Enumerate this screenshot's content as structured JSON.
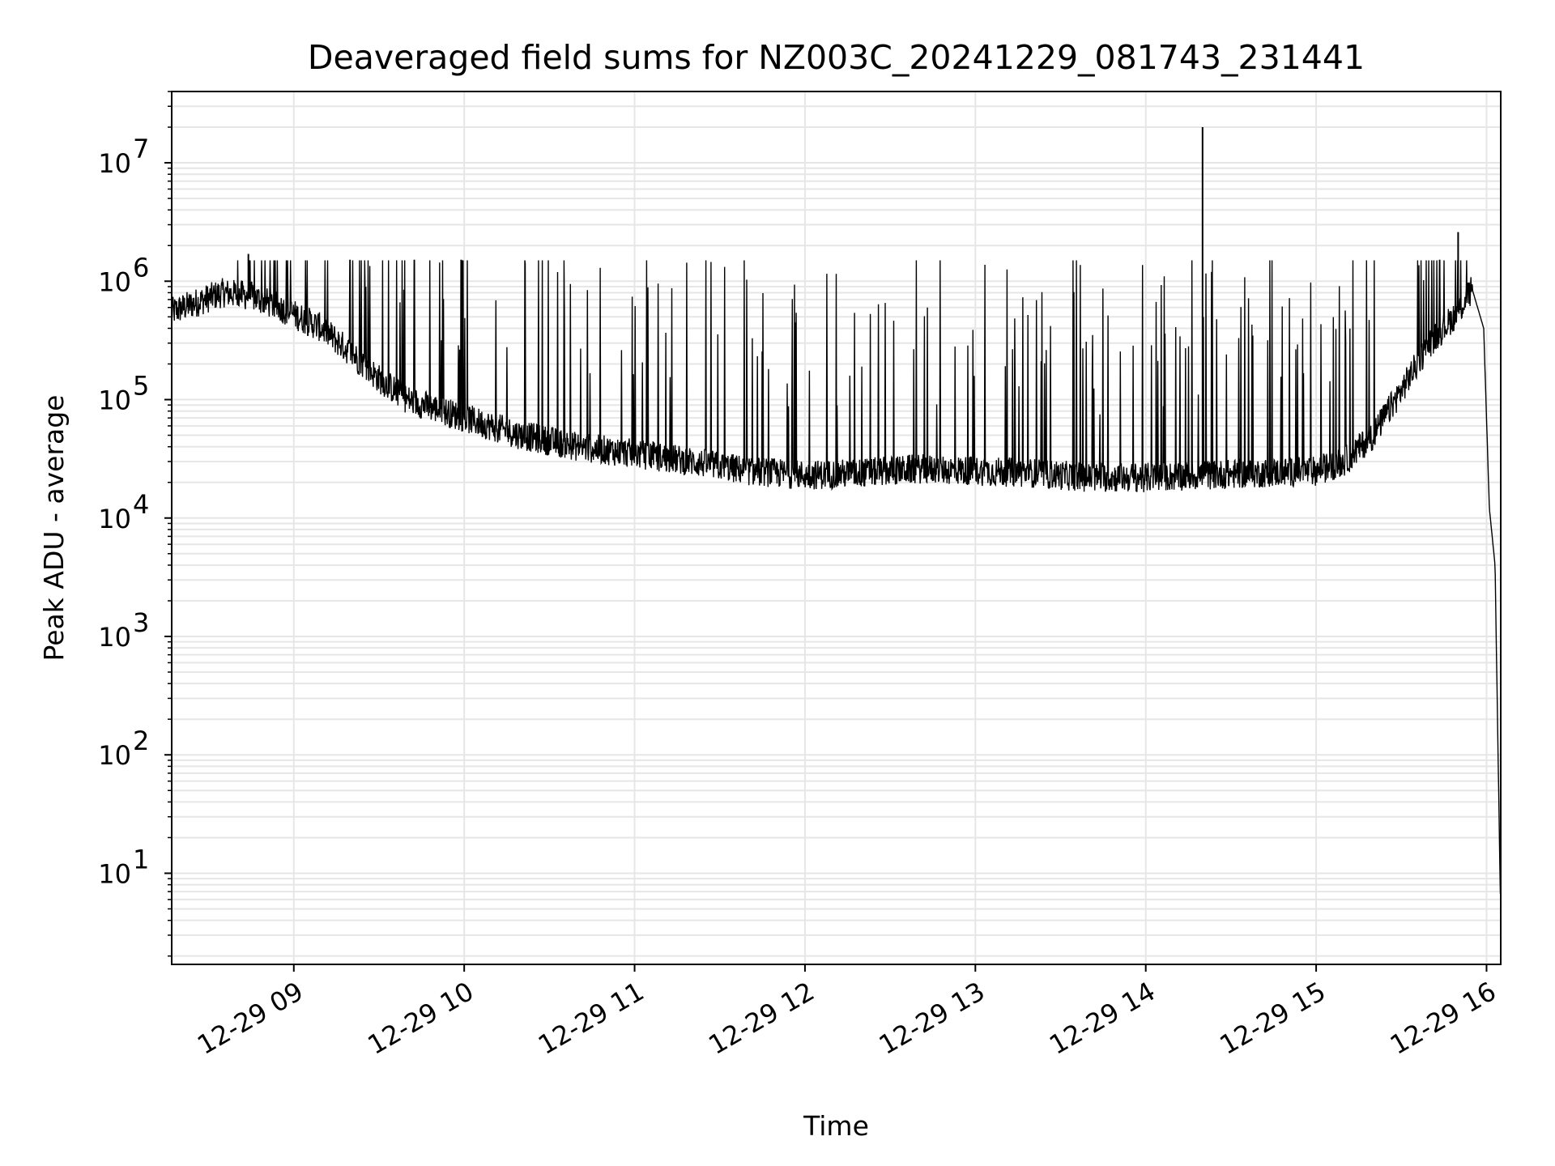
{
  "chart_data": {
    "type": "line",
    "title": "Deaveraged field sums for NZ003C_20241229_081743_231441",
    "xlabel": "Time",
    "ylabel": "Peak ADU - average",
    "yscale": "log",
    "xlim": [
      "12-29 08:17",
      "12-29 16:05"
    ],
    "ylim": [
      1.7,
      40000000
    ],
    "grid": true,
    "x_ticks": [
      "12-29 09",
      "12-29 10",
      "12-29 11",
      "12-29 12",
      "12-29 13",
      "12-29 14",
      "12-29 15",
      "12-29 16"
    ],
    "y_ticks": [
      {
        "base": "10",
        "exp": "1",
        "value": 10
      },
      {
        "base": "10",
        "exp": "2",
        "value": 100
      },
      {
        "base": "10",
        "exp": "3",
        "value": 1000
      },
      {
        "base": "10",
        "exp": "4",
        "value": 10000
      },
      {
        "base": "10",
        "exp": "5",
        "value": 100000
      },
      {
        "base": "10",
        "exp": "6",
        "value": 1000000
      },
      {
        "base": "10",
        "exp": "7",
        "value": 10000000
      }
    ],
    "line_color": "#000000",
    "grid_color": "#e6e6e6",
    "series": [
      {
        "x": [
          "12-29 08:17",
          "12-29 08:25",
          "12-29 08:35",
          "12-29 08:45",
          "12-29 08:55",
          "12-29 09:10",
          "12-29 09:20",
          "12-29 09:30",
          "12-29 09:40",
          "12-29 10:00",
          "12-29 10:20",
          "12-29 10:40",
          "12-29 11:00",
          "12-29 11:20",
          "12-29 11:40",
          "12-29 12:00",
          "12-29 12:20",
          "12-29 12:40",
          "12-29 13:00",
          "12-29 13:20",
          "12-29 13:40",
          "12-29 14:00",
          "12-29 14:20",
          "12-29 14:40",
          "12-29 15:00",
          "12-29 15:10",
          "12-29 15:20",
          "12-29 15:30",
          "12-29 15:40",
          "12-29 15:50",
          "12-29 15:55",
          "12-29 15:59",
          "12-29 16:01",
          "12-29 16:03",
          "12-29 16:05"
        ],
        "y": [
          550000,
          650000,
          800000,
          750000,
          600000,
          400000,
          250000,
          150000,
          100000,
          70000,
          50000,
          40000,
          35000,
          30000,
          25000,
          23000,
          24000,
          26000,
          25000,
          24000,
          22000,
          22000,
          23000,
          24000,
          25000,
          30000,
          50000,
          120000,
          300000,
          550000,
          850000,
          400000,
          12000,
          4000,
          4
        ]
      }
    ],
    "spikes": [
      {
        "x": "12-29 14:20",
        "y": 20000000
      },
      {
        "x": "12-29 15:50",
        "y": 2600000
      },
      {
        "x": "12-29 08:44",
        "y": 1700000
      }
    ]
  }
}
